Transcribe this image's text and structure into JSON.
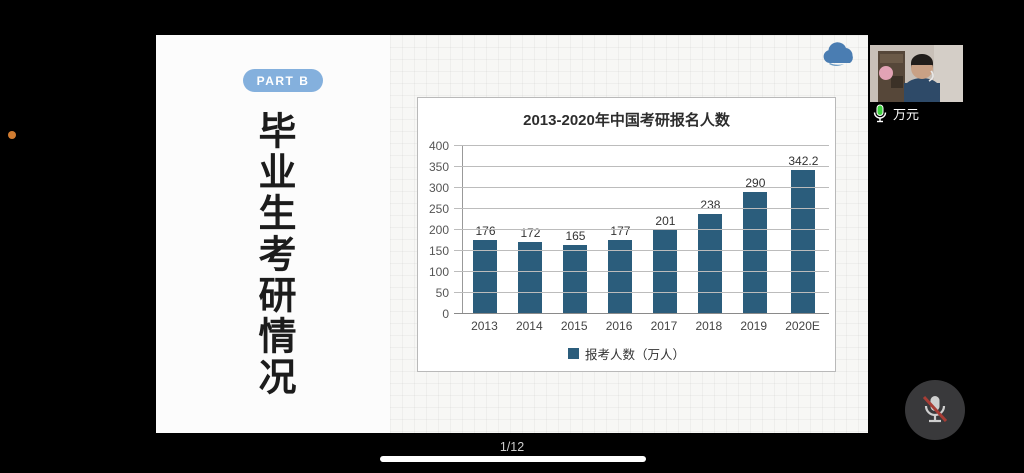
{
  "meeting": {
    "participant_name": "万元",
    "page_indicator": "1/12"
  },
  "slide": {
    "part_badge": "PART B",
    "title": "毕业生考研情况"
  },
  "chart_data": {
    "type": "bar",
    "title": "2013-2020年中国考研报名人数",
    "categories": [
      "2013",
      "2014",
      "2015",
      "2016",
      "2017",
      "2018",
      "2019",
      "2020E"
    ],
    "values": [
      176,
      172,
      165,
      177,
      201,
      238,
      290,
      342.2
    ],
    "legend": "报考人数（万人）",
    "legend_position": "bottom",
    "ylim": [
      0,
      400
    ],
    "yticks": [
      400,
      350,
      300,
      250,
      200,
      150,
      100,
      50,
      0
    ],
    "grid": true,
    "bar_color": "#2b5d7c"
  },
  "colors": {
    "badge_blue": "#84b0dd",
    "bar": "#2b5d7c",
    "mic_active_green": "#3fd23f",
    "mute_slash_red": "#a73d35",
    "cloud_blue": "#4a7db2"
  }
}
